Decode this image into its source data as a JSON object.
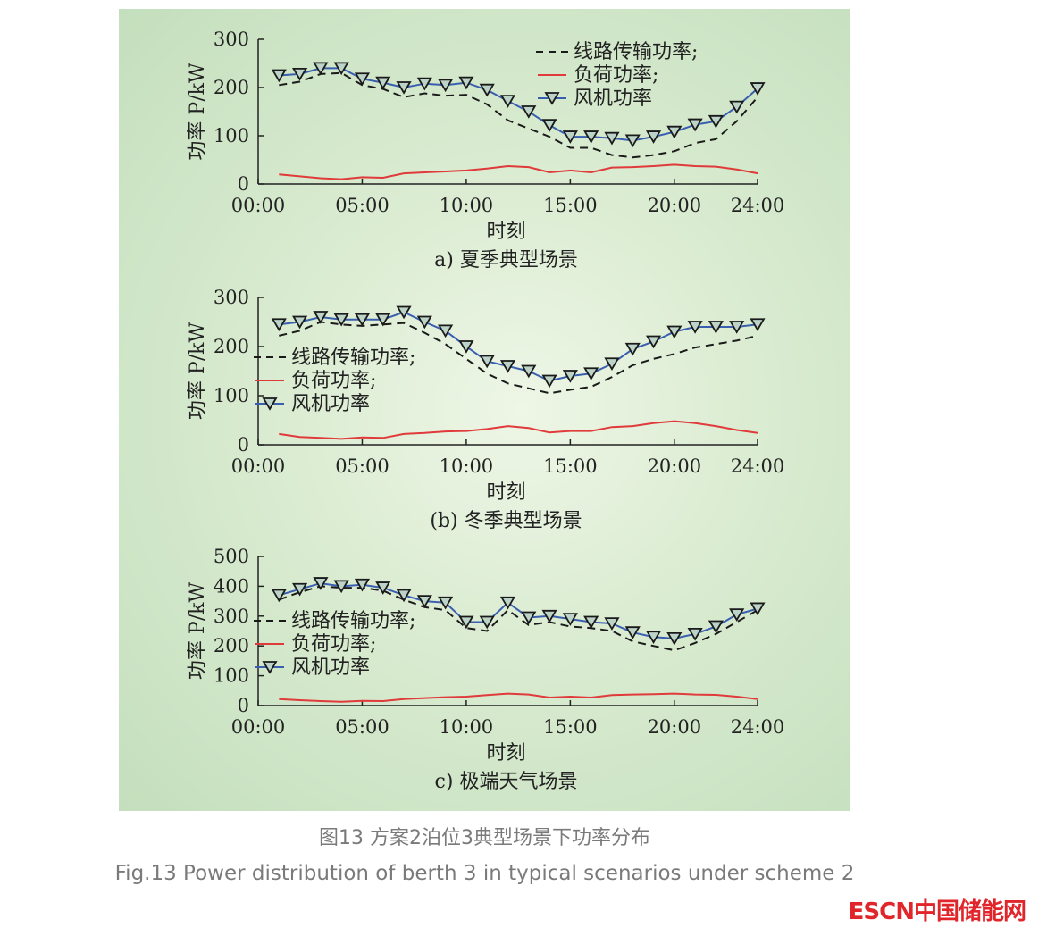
{
  "caption_cn": "图13  方案2泊位3典型场景下功率分布",
  "caption_en": "Fig.13  Power distribution of berth 3 in typical scenarios under scheme 2",
  "logo_text": "ESCN中国储能网",
  "colors": {
    "line_transmission": "#1a1a1a",
    "load": "#e03a3a",
    "wind": "#3a5fb0",
    "panel_bg": "#d9ebd0"
  },
  "chart_data": [
    {
      "type": "line",
      "title": "a) 夏季典型场景",
      "xlabel": "时刻",
      "ylabel": "功率 P/kW",
      "xticks": [
        "00:00",
        "05:00",
        "10:00",
        "15:00",
        "20:00",
        "24:00"
      ],
      "yticks": [
        0,
        100,
        200,
        300
      ],
      "ylim": [
        0,
        300
      ],
      "xlim_hours": [
        0,
        24
      ],
      "legend_position": "top-right",
      "x_hours": [
        1,
        2,
        3,
        4,
        5,
        6,
        7,
        8,
        9,
        10,
        11,
        12,
        13,
        14,
        15,
        16,
        17,
        18,
        19,
        20,
        21,
        22,
        23,
        24
      ],
      "series": [
        {
          "name": "线路传输功率;",
          "style": "dashed",
          "values": [
            205,
            212,
            228,
            230,
            205,
            197,
            180,
            188,
            183,
            185,
            165,
            132,
            115,
            98,
            75,
            75,
            60,
            55,
            60,
            68,
            85,
            93,
            130,
            180
          ]
        },
        {
          "name": "负荷功率;",
          "style": "solid-red",
          "values": [
            20,
            16,
            12,
            10,
            14,
            13,
            22,
            24,
            26,
            28,
            32,
            37,
            35,
            24,
            28,
            24,
            34,
            35,
            37,
            40,
            37,
            36,
            30,
            22
          ]
        },
        {
          "name": "风机功率",
          "style": "triangle-marker",
          "values": [
            225,
            228,
            240,
            240,
            218,
            210,
            200,
            208,
            205,
            210,
            195,
            172,
            150,
            122,
            98,
            98,
            95,
            90,
            98,
            108,
            123,
            130,
            160,
            198
          ]
        }
      ]
    },
    {
      "type": "line",
      "title": "(b) 冬季典型场景",
      "xlabel": "时刻",
      "ylabel": "功率 P/kW",
      "xticks": [
        "00:00",
        "05:00",
        "10:00",
        "15:00",
        "20:00",
        "24:00"
      ],
      "yticks": [
        0,
        100,
        200,
        300
      ],
      "ylim": [
        0,
        300
      ],
      "xlim_hours": [
        0,
        24
      ],
      "legend_position": "center-left",
      "x_hours": [
        1,
        2,
        3,
        4,
        5,
        6,
        7,
        8,
        9,
        10,
        11,
        12,
        13,
        14,
        15,
        16,
        17,
        18,
        19,
        20,
        21,
        22,
        23,
        24
      ],
      "series": [
        {
          "name": "线路传输功率;",
          "style": "dashed",
          "values": [
            222,
            232,
            250,
            245,
            242,
            245,
            248,
            228,
            205,
            175,
            145,
            125,
            115,
            105,
            112,
            118,
            138,
            162,
            175,
            185,
            198,
            205,
            212,
            222
          ]
        },
        {
          "name": "负荷功率;",
          "style": "solid-red",
          "values": [
            22,
            16,
            14,
            12,
            15,
            14,
            22,
            24,
            27,
            28,
            32,
            38,
            34,
            25,
            28,
            28,
            36,
            38,
            44,
            48,
            44,
            38,
            30,
            24
          ]
        },
        {
          "name": "风机功率",
          "style": "triangle-marker",
          "values": [
            245,
            250,
            260,
            255,
            255,
            255,
            270,
            250,
            232,
            200,
            170,
            160,
            150,
            130,
            140,
            145,
            165,
            195,
            210,
            230,
            240,
            240,
            240,
            245
          ]
        }
      ]
    },
    {
      "type": "line",
      "title": "c) 极端天气场景",
      "xlabel": "时刻",
      "ylabel": "功率 P/kW",
      "xticks": [
        "00:00",
        "05:00",
        "10:00",
        "15:00",
        "20:00",
        "24:00"
      ],
      "yticks": [
        0,
        100,
        200,
        300,
        400,
        500
      ],
      "ylim": [
        0,
        500
      ],
      "xlim_hours": [
        0,
        24
      ],
      "legend_position": "center-left",
      "x_hours": [
        1,
        2,
        3,
        4,
        5,
        6,
        7,
        8,
        9,
        10,
        11,
        12,
        13,
        14,
        15,
        16,
        17,
        18,
        19,
        20,
        21,
        22,
        23,
        24
      ],
      "series": [
        {
          "name": "线路传输功率;",
          "style": "dashed",
          "values": [
            355,
            380,
            400,
            395,
            395,
            385,
            355,
            330,
            320,
            260,
            250,
            320,
            270,
            280,
            265,
            260,
            250,
            215,
            200,
            185,
            210,
            240,
            280,
            320
          ]
        },
        {
          "name": "负荷功率;",
          "style": "solid-red",
          "values": [
            22,
            18,
            15,
            13,
            16,
            15,
            22,
            25,
            28,
            30,
            35,
            40,
            37,
            27,
            30,
            27,
            35,
            37,
            38,
            40,
            37,
            36,
            30,
            22
          ]
        },
        {
          "name": "风机功率",
          "style": "triangle-marker",
          "values": [
            370,
            390,
            410,
            400,
            405,
            395,
            370,
            350,
            345,
            280,
            280,
            345,
            295,
            300,
            290,
            280,
            275,
            245,
            230,
            225,
            240,
            265,
            305,
            325
          ]
        }
      ]
    }
  ]
}
